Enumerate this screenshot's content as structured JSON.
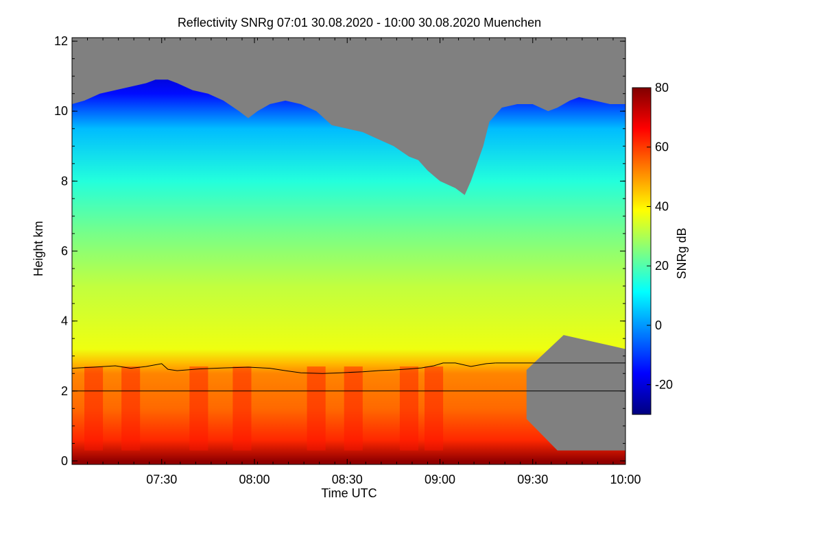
{
  "chart_data": {
    "type": "heatmap",
    "title": "Reflectivity SNRg   07:01 30.08.2020 - 10:00 30.08.2020 Muenchen",
    "xlabel": "Time UTC",
    "ylabel": "Height km",
    "colorbar_label": "SNRg dB",
    "x_domain_minutes": [
      421,
      600
    ],
    "y_domain_km": [
      -0.1,
      12.1
    ],
    "x_ticks": [
      {
        "label": "07:30",
        "minutes": 450
      },
      {
        "label": "08:00",
        "minutes": 480
      },
      {
        "label": "08:30",
        "minutes": 510
      },
      {
        "label": "09:00",
        "minutes": 540
      },
      {
        "label": "09:30",
        "minutes": 570
      },
      {
        "label": "10:00",
        "minutes": 600
      }
    ],
    "y_ticks": [
      0,
      2,
      4,
      6,
      8,
      10,
      12
    ],
    "colorbar_range": [
      -30,
      80
    ],
    "colorbar_ticks": [
      -20,
      0,
      20,
      40,
      60,
      80
    ],
    "colormap": [
      "#00007f",
      "#0000ff",
      "#0080ff",
      "#00ffff",
      "#80ff80",
      "#ffff00",
      "#ff8000",
      "#ff0000",
      "#800000"
    ],
    "no_data_color": "#808080",
    "reference_line_km": 2.0,
    "reference_line2_km": 2.8,
    "echo_top_km": [
      [
        421,
        10.2
      ],
      [
        425,
        10.3
      ],
      [
        430,
        10.5
      ],
      [
        435,
        10.6
      ],
      [
        440,
        10.7
      ],
      [
        445,
        10.8
      ],
      [
        448,
        10.9
      ],
      [
        452,
        10.9
      ],
      [
        455,
        10.8
      ],
      [
        460,
        10.6
      ],
      [
        465,
        10.5
      ],
      [
        470,
        10.3
      ],
      [
        475,
        10.0
      ],
      [
        478,
        9.8
      ],
      [
        481,
        10.0
      ],
      [
        485,
        10.2
      ],
      [
        490,
        10.3
      ],
      [
        495,
        10.2
      ],
      [
        500,
        10.0
      ],
      [
        505,
        9.6
      ],
      [
        510,
        9.5
      ],
      [
        515,
        9.4
      ],
      [
        520,
        9.2
      ],
      [
        525,
        9.0
      ],
      [
        530,
        8.7
      ],
      [
        533,
        8.6
      ],
      [
        536,
        8.3
      ],
      [
        540,
        8.0
      ],
      [
        545,
        7.8
      ],
      [
        548,
        7.6
      ],
      [
        550,
        8.0
      ],
      [
        552,
        8.5
      ],
      [
        554,
        9.0
      ],
      [
        556,
        9.7
      ],
      [
        560,
        10.1
      ],
      [
        565,
        10.2
      ],
      [
        570,
        10.2
      ],
      [
        575,
        10.0
      ],
      [
        578,
        10.1
      ],
      [
        582,
        10.3
      ],
      [
        585,
        10.4
      ],
      [
        590,
        10.3
      ],
      [
        595,
        10.2
      ],
      [
        600,
        10.2
      ]
    ],
    "precip_end_minutes": 568,
    "melting_layer_km": [
      [
        421,
        2.65
      ],
      [
        428,
        2.68
      ],
      [
        435,
        2.72
      ],
      [
        440,
        2.65
      ],
      [
        445,
        2.7
      ],
      [
        450,
        2.78
      ],
      [
        452,
        2.62
      ],
      [
        455,
        2.58
      ],
      [
        462,
        2.63
      ],
      [
        470,
        2.66
      ],
      [
        478,
        2.68
      ],
      [
        485,
        2.65
      ],
      [
        490,
        2.58
      ],
      [
        495,
        2.52
      ],
      [
        502,
        2.5
      ],
      [
        508,
        2.52
      ],
      [
        515,
        2.55
      ],
      [
        520,
        2.58
      ],
      [
        525,
        2.6
      ],
      [
        530,
        2.63
      ],
      [
        534,
        2.66
      ],
      [
        538,
        2.72
      ],
      [
        541,
        2.8
      ],
      [
        545,
        2.8
      ],
      [
        550,
        2.7
      ],
      [
        555,
        2.78
      ],
      [
        558,
        2.8
      ]
    ]
  }
}
